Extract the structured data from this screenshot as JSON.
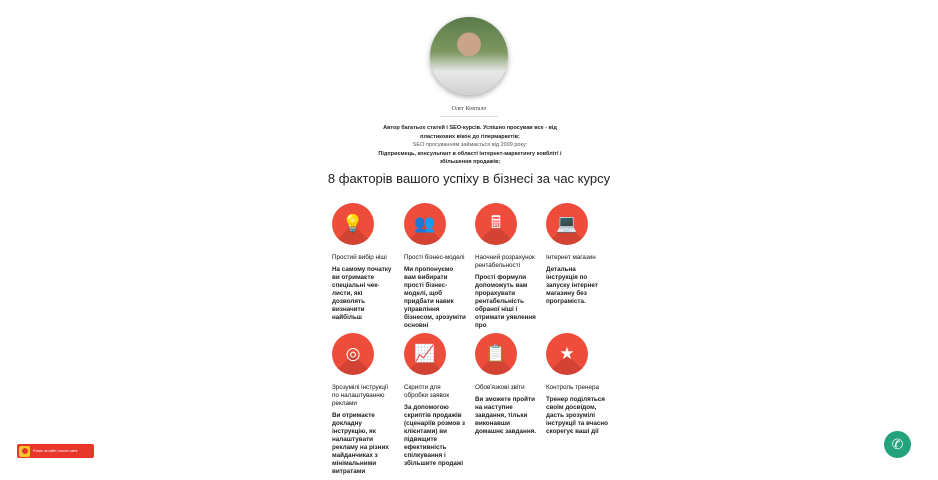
{
  "profile": {
    "name": "Олег Ковтало",
    "bio": [
      "Автор багатьох статей і SEO-курсів. Успішно просував все - від пластикових вікон до гіпермаркетів;",
      "SEO просуванням займається від 2009 року;",
      "Підприємець, консультант в області інтернет-маркетингу ковбліті і збільшення продажів;"
    ]
  },
  "heading": "8 факторів вашого успіху в бізнесі за час курсу",
  "accent": "#ef4d3c",
  "factors": [
    {
      "icon": "lightbulb-icon",
      "glyph": "💡",
      "title": "Простий вибір ніші",
      "desc": "На самому початку ви отримаєте спеціальні чек-листи, які дозволять визначити найбільш"
    },
    {
      "icon": "org-chart-icon",
      "glyph": "👥",
      "title": "Прості бізнес-моделі",
      "desc": "Ми пропонуємо вам вибирати прості бізнес-моделі, щоб придбати навик управління бізнесом, зрозуміти основні"
    },
    {
      "icon": "calculator-icon",
      "glyph": "🖩",
      "title": "Наочний розрахунок рентабельності",
      "desc": "Прості формули допоможуть вам прорахувати рентабельність обраної ніші і отримати уявлення про"
    },
    {
      "icon": "laptop-icon",
      "glyph": "💻",
      "title": "Інтернет магазин",
      "desc": "Детальна інструкція по запуску інтернет магазину без програміста."
    },
    {
      "icon": "target-icon",
      "glyph": "◎",
      "title": "Зрозумілі інструкції по налаштуванню реклами",
      "desc": "Ви отримаєте докладну інструкцію, як налаштувати рекламу на різних майданчиках з мінімальними витратами"
    },
    {
      "icon": "chart-board-icon",
      "glyph": "📈",
      "title": "Скрипти для обробки заявок",
      "desc": "За допомогою скриптів продажів (сценаріїв розмов з клієнтами) ви підвищите ефективність спілкування і збільшите продажі"
    },
    {
      "icon": "clipboard-icon",
      "glyph": "📋",
      "title": "Обов'язкові звіти",
      "desc": "Ви зможете пройти на наступне завдання, тільки виконавши домашнє завдання."
    },
    {
      "icon": "star-icon",
      "glyph": "★",
      "title": "Контроль тренера",
      "desc": "Тренер поділяться своїм досвідом, дасть зрозумілі інструкції та вчасно скорегує ваші дії"
    }
  ],
  "widget": {
    "label": "Я вже на сайті, пишіть мені"
  },
  "phone": {
    "icon": "phone-icon",
    "color": "#23a37c"
  }
}
